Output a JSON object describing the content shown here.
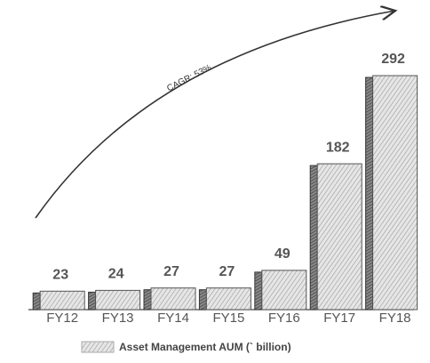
{
  "chart_data": {
    "type": "bar",
    "annotation": "CAGR: 53%",
    "categories": [
      "FY12",
      "FY13",
      "FY14",
      "FY15",
      "FY16",
      "FY17",
      "FY18"
    ],
    "series": [
      {
        "name": "Asset Management AUM (` billion)",
        "color": "#c4c4c4",
        "values": [
          23,
          24,
          27,
          27,
          49,
          182,
          292
        ]
      }
    ]
  }
}
